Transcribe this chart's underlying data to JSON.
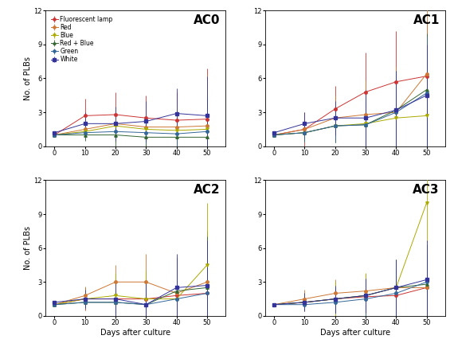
{
  "days": [
    0,
    10,
    20,
    30,
    40,
    50
  ],
  "series_names": [
    "Fluorescent lamp",
    "Red",
    "Blue",
    "Red + Blue",
    "Green",
    "White"
  ],
  "series_colors": [
    "#cc3333",
    "#cc7733",
    "#aaaa00",
    "#336633",
    "#336699",
    "#333399"
  ],
  "series_markers": [
    "o",
    "o",
    "v",
    "^",
    "o",
    "s"
  ],
  "AC0": {
    "means": [
      [
        1.0,
        2.7,
        2.8,
        2.5,
        2.3,
        2.4
      ],
      [
        1.0,
        1.5,
        2.0,
        1.7,
        1.7,
        1.8
      ],
      [
        1.0,
        1.3,
        1.8,
        1.5,
        1.4,
        1.5
      ],
      [
        1.0,
        1.0,
        1.0,
        0.8,
        0.8,
        0.8
      ],
      [
        1.0,
        1.2,
        1.3,
        1.2,
        1.1,
        1.3
      ],
      [
        1.2,
        2.0,
        2.0,
        2.2,
        2.9,
        2.7
      ]
    ],
    "errors": [
      [
        0.0,
        1.5,
        2.0,
        2.0,
        2.5,
        4.5
      ],
      [
        0.0,
        0.8,
        1.5,
        2.0,
        2.5,
        4.5
      ],
      [
        0.0,
        0.7,
        1.5,
        1.8,
        2.2,
        4.0
      ],
      [
        0.0,
        0.5,
        1.0,
        1.2,
        1.5,
        3.5
      ],
      [
        0.0,
        0.5,
        0.8,
        1.0,
        1.2,
        3.0
      ],
      [
        0.0,
        1.0,
        1.5,
        1.8,
        2.2,
        3.5
      ]
    ]
  },
  "AC1": {
    "means": [
      [
        1.0,
        1.5,
        3.3,
        4.8,
        5.7,
        6.2
      ],
      [
        1.0,
        1.5,
        2.5,
        2.8,
        3.0,
        6.4
      ],
      [
        1.0,
        1.2,
        1.8,
        2.0,
        2.5,
        2.7
      ],
      [
        1.0,
        1.2,
        1.8,
        1.9,
        3.2,
        5.0
      ],
      [
        1.0,
        1.2,
        1.8,
        1.9,
        3.0,
        4.7
      ],
      [
        1.2,
        2.0,
        2.5,
        2.5,
        3.2,
        4.5
      ]
    ],
    "errors": [
      [
        0.0,
        1.5,
        2.0,
        3.5,
        4.5,
        5.0
      ],
      [
        0.0,
        1.0,
        2.0,
        3.0,
        4.0,
        6.0
      ],
      [
        0.0,
        0.8,
        1.5,
        2.0,
        3.0,
        4.5
      ],
      [
        0.0,
        0.8,
        1.5,
        2.5,
        3.5,
        5.0
      ],
      [
        0.0,
        0.8,
        1.5,
        2.5,
        3.5,
        5.0
      ],
      [
        0.0,
        1.0,
        1.5,
        2.5,
        3.5,
        4.5
      ]
    ]
  },
  "AC2": {
    "means": [
      [
        1.0,
        1.5,
        1.5,
        1.5,
        1.8,
        2.0
      ],
      [
        1.0,
        1.8,
        3.0,
        3.0,
        2.0,
        3.0
      ],
      [
        1.0,
        1.5,
        1.8,
        1.5,
        1.5,
        4.5
      ],
      [
        1.0,
        1.2,
        1.2,
        1.0,
        2.2,
        2.5
      ],
      [
        1.0,
        1.2,
        1.2,
        1.0,
        1.5,
        2.0
      ],
      [
        1.2,
        1.5,
        1.5,
        1.0,
        2.5,
        2.7
      ]
    ],
    "errors": [
      [
        0.0,
        1.0,
        2.0,
        2.5,
        3.0,
        4.0
      ],
      [
        0.0,
        0.8,
        1.5,
        2.5,
        3.0,
        4.5
      ],
      [
        0.0,
        0.8,
        2.0,
        2.5,
        3.5,
        5.5
      ],
      [
        0.0,
        0.5,
        1.0,
        2.0,
        3.0,
        4.5
      ],
      [
        0.0,
        0.5,
        1.0,
        1.5,
        2.5,
        4.0
      ],
      [
        0.0,
        0.8,
        1.5,
        2.0,
        3.0,
        4.0
      ]
    ]
  },
  "AC3": {
    "means": [
      [
        1.0,
        1.2,
        1.5,
        1.7,
        1.8,
        2.5
      ],
      [
        1.0,
        1.5,
        2.0,
        2.2,
        2.5,
        2.5
      ],
      [
        1.0,
        1.2,
        1.5,
        1.8,
        2.5,
        10.0
      ],
      [
        1.0,
        1.2,
        1.5,
        1.8,
        2.5,
        2.8
      ],
      [
        1.0,
        1.0,
        1.2,
        1.5,
        2.0,
        3.0
      ],
      [
        1.0,
        1.2,
        1.5,
        1.8,
        2.5,
        3.2
      ]
    ],
    "errors": [
      [
        0.0,
        0.8,
        1.2,
        1.5,
        2.0,
        2.5
      ],
      [
        0.0,
        0.8,
        1.2,
        1.5,
        2.0,
        2.5
      ],
      [
        0.0,
        0.8,
        1.5,
        2.0,
        2.5,
        3.5
      ],
      [
        0.0,
        0.5,
        1.0,
        1.5,
        2.5,
        3.5
      ],
      [
        0.0,
        0.5,
        1.0,
        1.5,
        2.0,
        2.5
      ],
      [
        0.0,
        0.8,
        1.2,
        1.5,
        2.5,
        3.5
      ]
    ]
  },
  "ylim": [
    0,
    12
  ],
  "yticks": [
    0,
    3,
    6,
    9,
    12
  ],
  "xticks": [
    0,
    10,
    20,
    30,
    40,
    50
  ],
  "xlabel": "Days after culture",
  "ylabel": "No. of PLBs",
  "panel_labels": [
    "AC0",
    "AC1",
    "AC2",
    "AC3"
  ],
  "background_color": "#ffffff",
  "legend_fontsize": 5.5,
  "tick_fontsize": 6,
  "label_fontsize": 7,
  "panel_label_fontsize": 11
}
